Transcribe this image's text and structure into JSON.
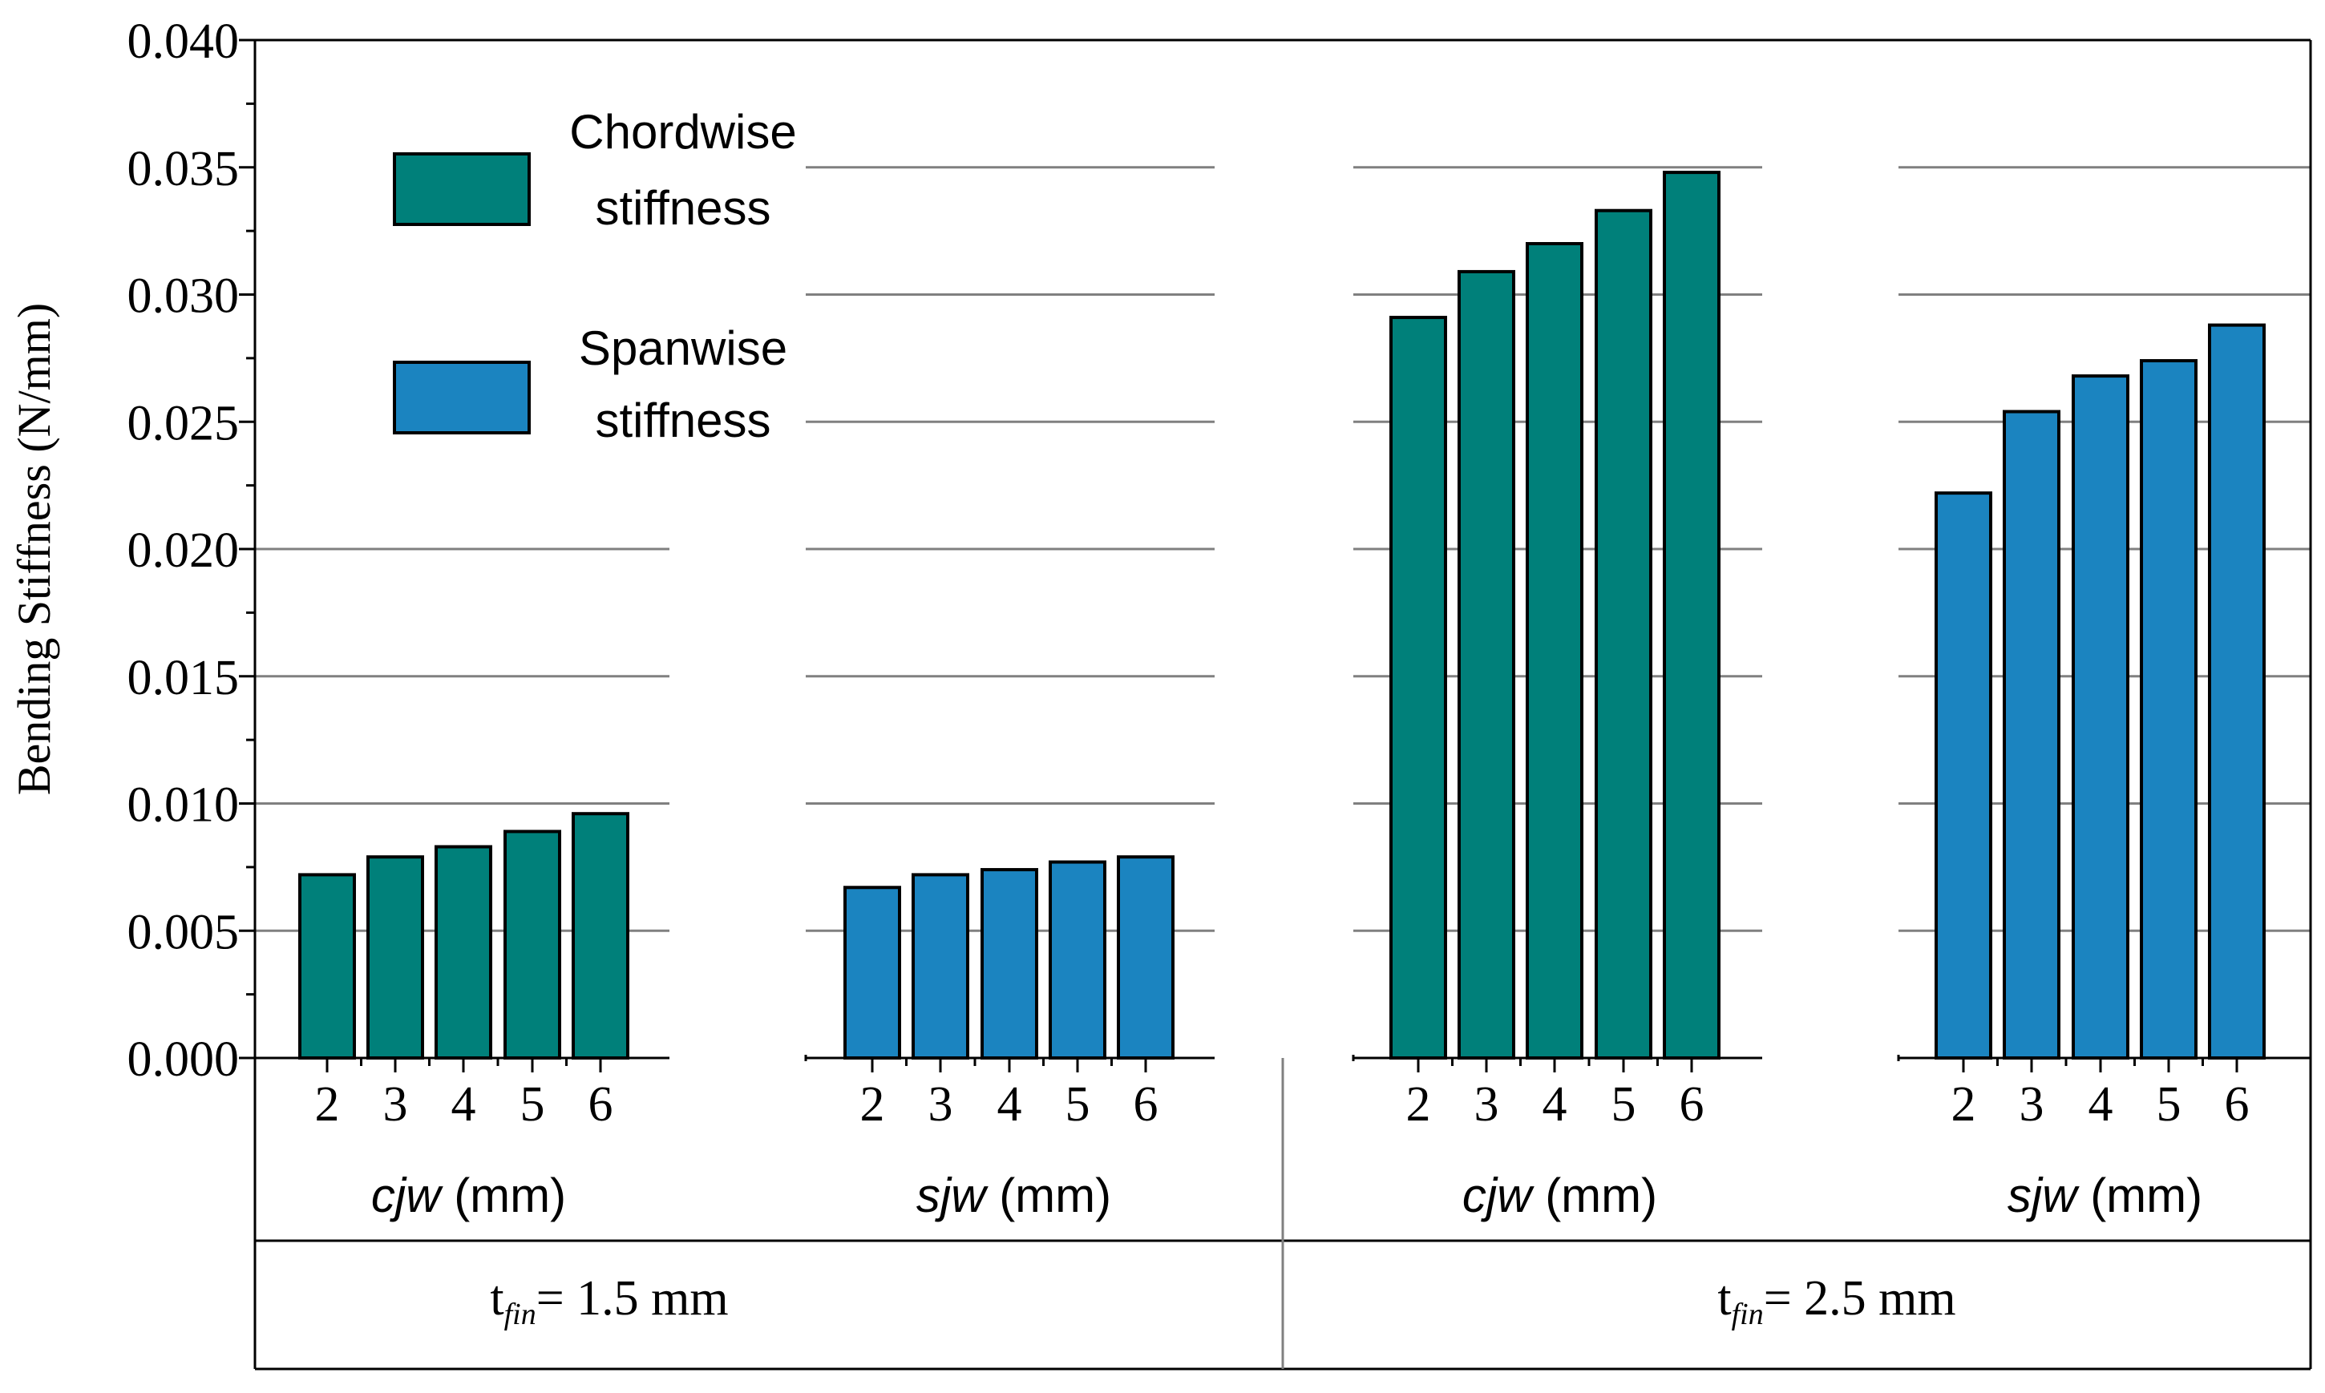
{
  "chart_data": {
    "type": "bar",
    "ylabel": "Bending Stiffness (N/mm)",
    "ylim": [
      0,
      0.04
    ],
    "yticks": [
      "0.000",
      "0.005",
      "0.010",
      "0.015",
      "0.020",
      "0.025",
      "0.030",
      "0.035",
      "0.040"
    ],
    "grid": true,
    "legend": {
      "placement": "top-left",
      "entries": [
        {
          "line1": "Chordwise",
          "line2": "stiffness",
          "color": "#00807a"
        },
        {
          "line1": "Spanwise",
          "line2": "stiffness",
          "color": "#1b84c0"
        }
      ]
    },
    "panels": [
      {
        "variable": "cjw",
        "unit": "(mm)",
        "group": 0,
        "series": "Chordwise stiffness",
        "color": "#00807a",
        "categories": [
          "2",
          "3",
          "4",
          "5",
          "6"
        ],
        "values": [
          0.0072,
          0.0079,
          0.0083,
          0.0089,
          0.0096
        ]
      },
      {
        "variable": "sjw",
        "unit": "(mm)",
        "group": 0,
        "series": "Spanwise stiffness",
        "color": "#1b84c0",
        "categories": [
          "2",
          "3",
          "4",
          "5",
          "6"
        ],
        "values": [
          0.0067,
          0.0072,
          0.0074,
          0.0077,
          0.0079
        ]
      },
      {
        "variable": "cjw",
        "unit": "(mm)",
        "group": 1,
        "series": "Chordwise stiffness",
        "color": "#00807a",
        "categories": [
          "2",
          "3",
          "4",
          "5",
          "6"
        ],
        "values": [
          0.0291,
          0.0309,
          0.032,
          0.0333,
          0.0348
        ]
      },
      {
        "variable": "sjw",
        "unit": "(mm)",
        "group": 1,
        "series": "Spanwise stiffness",
        "color": "#1b84c0",
        "categories": [
          "2",
          "3",
          "4",
          "5",
          "6"
        ],
        "values": [
          0.0222,
          0.0254,
          0.0268,
          0.0274,
          0.0288
        ]
      }
    ],
    "groups": [
      {
        "prefix": "t",
        "subscript": "fin",
        "suffix": "= 1.5 mm"
      },
      {
        "prefix": "t",
        "subscript": "fin",
        "suffix": "= 2.5 mm"
      }
    ]
  }
}
